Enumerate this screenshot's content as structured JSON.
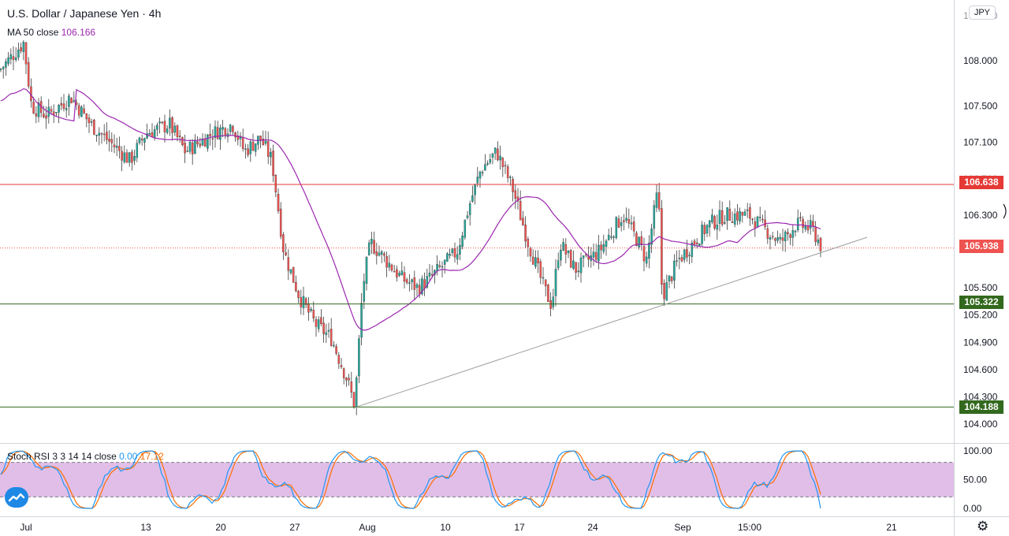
{
  "header": {
    "title": "U.S. Dollar / Japanese Yen",
    "separator": "·",
    "interval": "4h",
    "currency_pill": "JPY"
  },
  "ma_legend": {
    "label": "MA 50 close",
    "value": "106.166"
  },
  "rsi_legend": {
    "label": "Stoch RSI 3 3 14 14 close",
    "k_value": "0.00",
    "d_value": "17.12"
  },
  "price_axis": {
    "ticks": [
      "108.000",
      "107.500",
      "107.100",
      "106.300",
      "105.500",
      "105.200",
      "104.900",
      "104.600",
      "104.300",
      "104.000"
    ],
    "partial_ticks": [
      "106.700",
      "108.400"
    ]
  },
  "rsi_axis": {
    "ticks": [
      "100.00",
      "50.00",
      "0.00"
    ]
  },
  "time_axis": [
    "Jul",
    "13",
    "20",
    "27",
    "Aug",
    "10",
    "17",
    "24",
    "Sep",
    "15:00",
    "21"
  ],
  "price_tags": [
    {
      "label": "106.638",
      "color": "#e53935"
    },
    {
      "label": "105.938",
      "color": "#ef5350"
    },
    {
      "label": "105.322",
      "color": "#33691e"
    },
    {
      "label": "104.188",
      "color": "#33691e"
    }
  ],
  "colors": {
    "up": "#26a69a",
    "down": "#ef5350",
    "ma": "#9c27b0",
    "rsi_k": "#2196f3",
    "rsi_d": "#ff6d00",
    "rsi_band": "#e1bee7",
    "resistance": "#e53935",
    "support": "#33691e"
  },
  "icons": {
    "logo": "tradingview-logo-icon",
    "settings": "gear-icon",
    "axis_handle": "scroll-handle-icon"
  },
  "chart_data": {
    "type": "candlestick",
    "title": "U.S. Dollar / Japanese Yen · 4h",
    "symbol": "USDJPY",
    "interval": "4h",
    "xlabel": "",
    "ylabel": "",
    "ylim": [
      103.9,
      108.4
    ],
    "x_ticks": [
      "Jul",
      "13",
      "20",
      "27",
      "Aug",
      "10",
      "17",
      "24",
      "Sep",
      "15:00",
      "21"
    ],
    "close_path": [
      [
        "Jul",
        107.9
      ],
      [
        "Jul",
        108.2
      ],
      [
        "Jul",
        107.5
      ],
      [
        "7",
        107.4
      ],
      [
        "9",
        107.6
      ],
      [
        "10",
        107.3
      ],
      [
        "13",
        106.9
      ],
      [
        "14",
        107.2
      ],
      [
        "16",
        107.3
      ],
      [
        "17",
        107.0
      ],
      [
        "20",
        107.2
      ],
      [
        "21",
        107.3
      ],
      [
        "22",
        107.0
      ],
      [
        "23",
        107.15
      ],
      [
        "24",
        106.9
      ],
      [
        "27",
        105.9
      ],
      [
        "28",
        105.4
      ],
      [
        "29",
        105.1
      ],
      [
        "30",
        104.95
      ],
      [
        "31",
        104.5
      ],
      [
        "Aug",
        104.2
      ],
      [
        "Aug",
        105.5
      ],
      [
        "3",
        106.0
      ],
      [
        "4",
        105.8
      ],
      [
        "5",
        105.6
      ],
      [
        "6",
        105.5
      ],
      [
        "7",
        105.6
      ],
      [
        "10",
        105.9
      ],
      [
        "11",
        106.4
      ],
      [
        "12",
        106.8
      ],
      [
        "13",
        107.0
      ],
      [
        "14",
        106.6
      ],
      [
        "17",
        106.0
      ],
      [
        "18",
        105.5
      ],
      [
        "19",
        105.3
      ],
      [
        "20",
        106.0
      ],
      [
        "21",
        105.7
      ],
      [
        "24",
        105.9
      ],
      [
        "25",
        106.3
      ],
      [
        "26",
        106.0
      ],
      [
        "27",
        105.8
      ],
      [
        "28",
        106.6
      ],
      [
        "Sep",
        105.4
      ],
      [
        "Sep",
        105.8
      ],
      [
        "2",
        106.0
      ],
      [
        "3",
        106.2
      ],
      [
        "4",
        106.3
      ],
      [
        "7",
        106.3
      ],
      [
        "8",
        106.15
      ],
      [
        "9",
        106.0
      ],
      [
        "10",
        106.2
      ],
      [
        "11",
        106.15
      ],
      [
        "14",
        105.938
      ]
    ],
    "ma_50": {
      "name": "MA 50 close",
      "last": 106.166
    },
    "levels": [
      {
        "label": "106.638",
        "value": 106.638,
        "kind": "resistance"
      },
      {
        "label": "105.322",
        "value": 105.322,
        "kind": "support"
      },
      {
        "label": "104.188",
        "value": 104.188,
        "kind": "support"
      },
      {
        "label": "105.938",
        "value": 105.938,
        "kind": "last_price"
      }
    ],
    "trendline": {
      "from": [
        "Jul 31",
        104.188
      ],
      "to": [
        "Sep 18",
        106.0
      ]
    },
    "stoch_rsi": {
      "name": "Stoch RSI 3 3 14 14 close",
      "k_last": 0.0,
      "d_last": 17.12,
      "bands": [
        80,
        20
      ],
      "ylim": [
        0,
        100
      ],
      "y_ticks": [
        "100.00",
        "50.00",
        "0.00"
      ]
    }
  }
}
